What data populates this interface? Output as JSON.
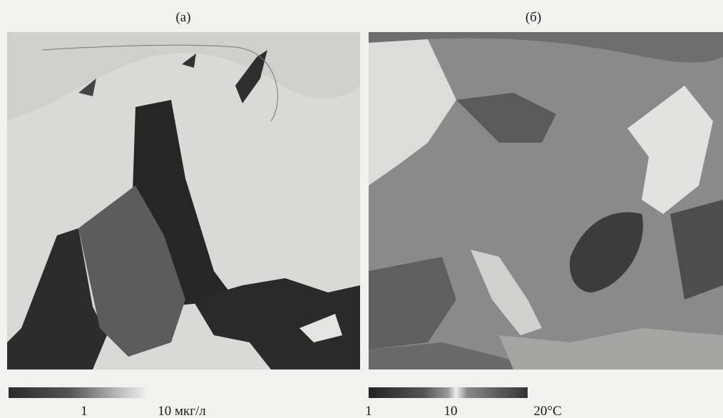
{
  "panels": [
    {
      "label": "(а)",
      "scale": {
        "labels": [
          "1",
          "10 мкг/л"
        ]
      }
    },
    {
      "label": "(б)",
      "scale": {
        "labels": [
          "1",
          "10",
          "20°C"
        ]
      }
    }
  ]
}
